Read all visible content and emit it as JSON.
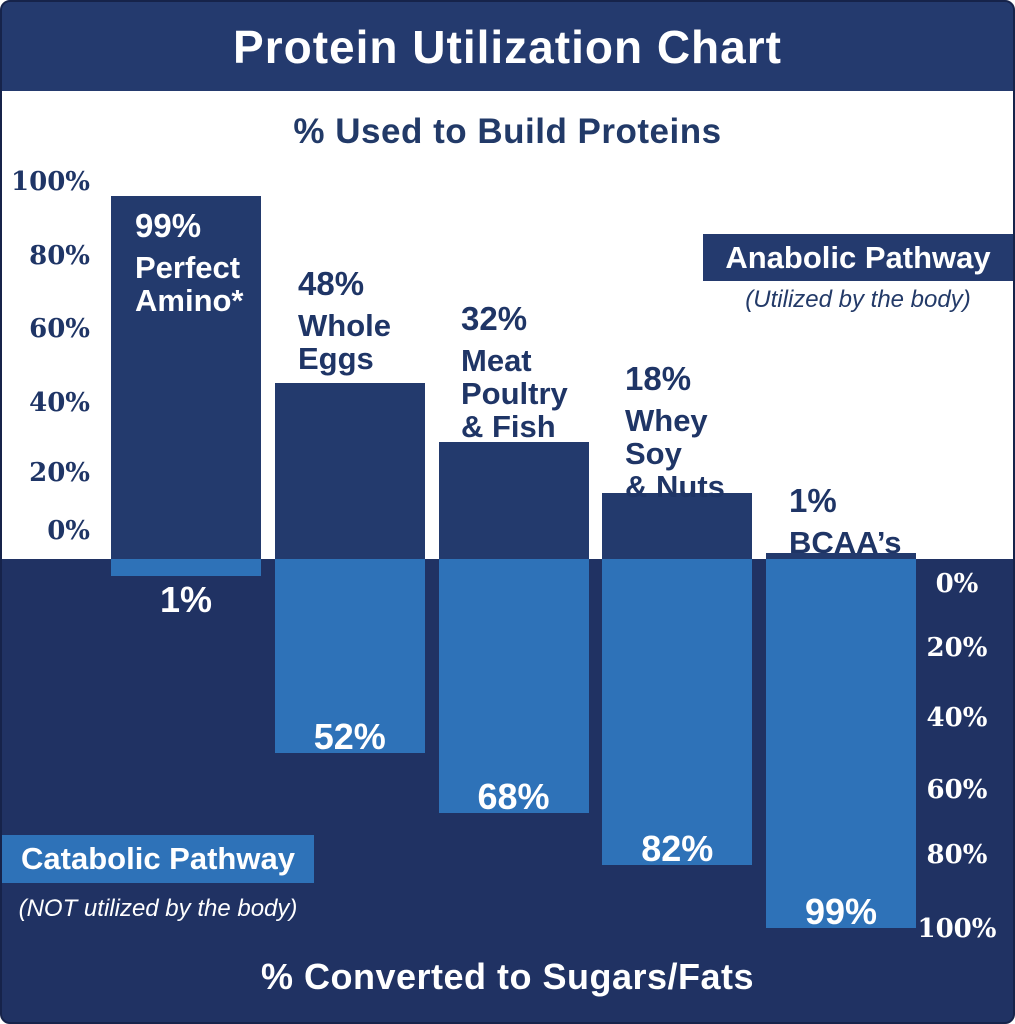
{
  "title": "Protein Utilization Chart",
  "top_axis_title": "% Used to Build Proteins",
  "bottom_axis_title": "% Converted to Sugars/Fats",
  "anabolic": {
    "label": "Anabolic Pathway",
    "sublabel": "(Utilized by the body)"
  },
  "catabolic": {
    "label": "Catabolic Pathway",
    "sublabel": "(NOT utilized by the body)"
  },
  "left_axis_ticks": [
    "100%",
    "80%",
    "60%",
    "40%",
    "20%",
    "0%"
  ],
  "right_axis_ticks": [
    "0%",
    "20%",
    "40%",
    "60%",
    "80%",
    "100%"
  ],
  "colors": {
    "navy": "#243a6e",
    "background_navy": "#203263",
    "light_blue": "#2e72b8",
    "white": "#ffffff"
  },
  "chart_data": {
    "type": "bar",
    "categories": [
      "Perfect Amino*",
      "Whole Eggs",
      "Meat Poultry & Fish",
      "Whey Soy & Nuts",
      "BCAA’s"
    ],
    "series": [
      {
        "name": "% Used to Build Proteins (Anabolic Pathway)",
        "values": [
          99,
          48,
          32,
          18,
          1
        ]
      },
      {
        "name": "% Converted to Sugars/Fats (Catabolic Pathway)",
        "values": [
          1,
          52,
          68,
          82,
          99
        ]
      }
    ],
    "title": "Protein Utilization Chart",
    "xlabel": "",
    "ylabel_top": "% Used to Build Proteins",
    "ylabel_bottom": "% Converted to Sugars/Fats",
    "ylim_top": [
      0,
      100
    ],
    "ylim_bottom": [
      0,
      100
    ],
    "grid": false,
    "legend_position": "annotations (Anabolic top-right, Catabolic bottom-left)",
    "orientation": "diverging vertical bars"
  },
  "columns": [
    {
      "up_label": "99%",
      "name_lines": [
        "Perfect",
        "Amino*"
      ],
      "down_label": "1%"
    },
    {
      "up_label": "48%",
      "name_lines": [
        "Whole",
        "Eggs"
      ],
      "down_label": "52%"
    },
    {
      "up_label": "32%",
      "name_lines": [
        "Meat",
        "Poultry",
        "& Fish"
      ],
      "down_label": "68%"
    },
    {
      "up_label": "18%",
      "name_lines": [
        "Whey",
        "Soy",
        "& Nuts"
      ],
      "down_label": "82%"
    },
    {
      "up_label": "1%",
      "name_lines": [
        "BCAA’s"
      ],
      "down_label": "99%"
    }
  ]
}
